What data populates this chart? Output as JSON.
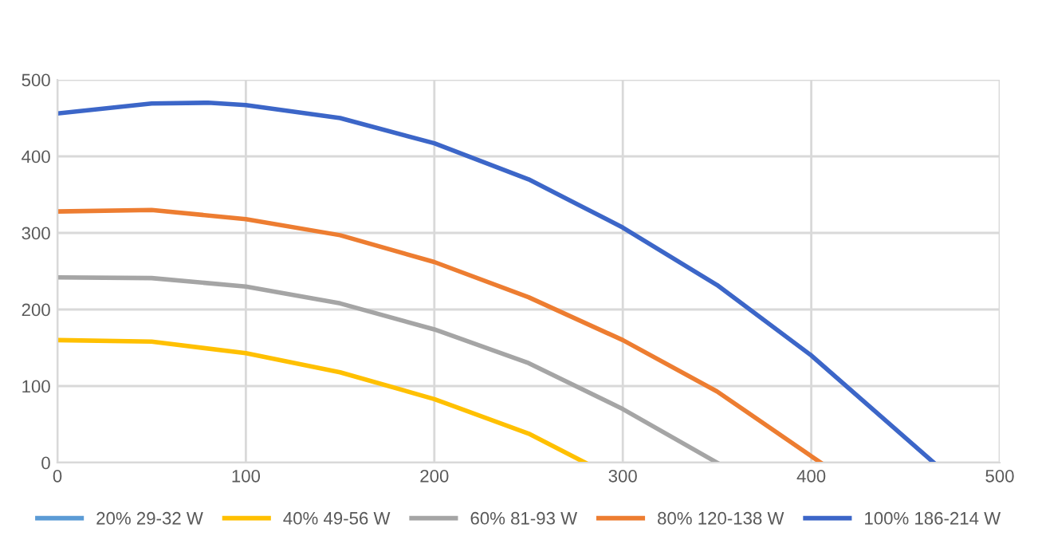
{
  "chart_data": {
    "type": "line",
    "series": [
      {
        "name": "20% 29-32 W",
        "color": "#5b9bd5"
      },
      {
        "name": "40% 49-56 W",
        "color": "#ffc000",
        "x": [
          0,
          50,
          100,
          150,
          200,
          250,
          280
        ],
        "values": [
          160,
          158,
          143,
          118,
          83,
          38,
          0
        ]
      },
      {
        "name": "60% 81-93 W",
        "color": "#a5a5a5",
        "x": [
          0,
          50,
          100,
          150,
          200,
          250,
          300,
          350
        ],
        "values": [
          242,
          241,
          230,
          208,
          174,
          130,
          70,
          0
        ]
      },
      {
        "name": "80% 120-138 W",
        "color": "#ed7d31",
        "x": [
          0,
          50,
          100,
          150,
          200,
          250,
          300,
          350,
          405
        ],
        "values": [
          328,
          330,
          318,
          297,
          262,
          216,
          160,
          93,
          0
        ]
      },
      {
        "name": "100% 186-214 W",
        "color": "#3c66c8",
        "x": [
          0,
          50,
          80,
          100,
          150,
          200,
          250,
          300,
          350,
          400,
          465
        ],
        "values": [
          456,
          469,
          470,
          467,
          450,
          417,
          370,
          307,
          232,
          140,
          0
        ]
      }
    ],
    "xlim": [
      0,
      500
    ],
    "xticks": [
      0,
      100,
      200,
      300,
      400,
      500
    ],
    "ylim": [
      0,
      500
    ],
    "yticks": [
      0,
      100,
      200,
      300,
      400,
      500
    ],
    "grid": true,
    "legend": "bottom",
    "marker": "none",
    "line_style": "solid"
  }
}
